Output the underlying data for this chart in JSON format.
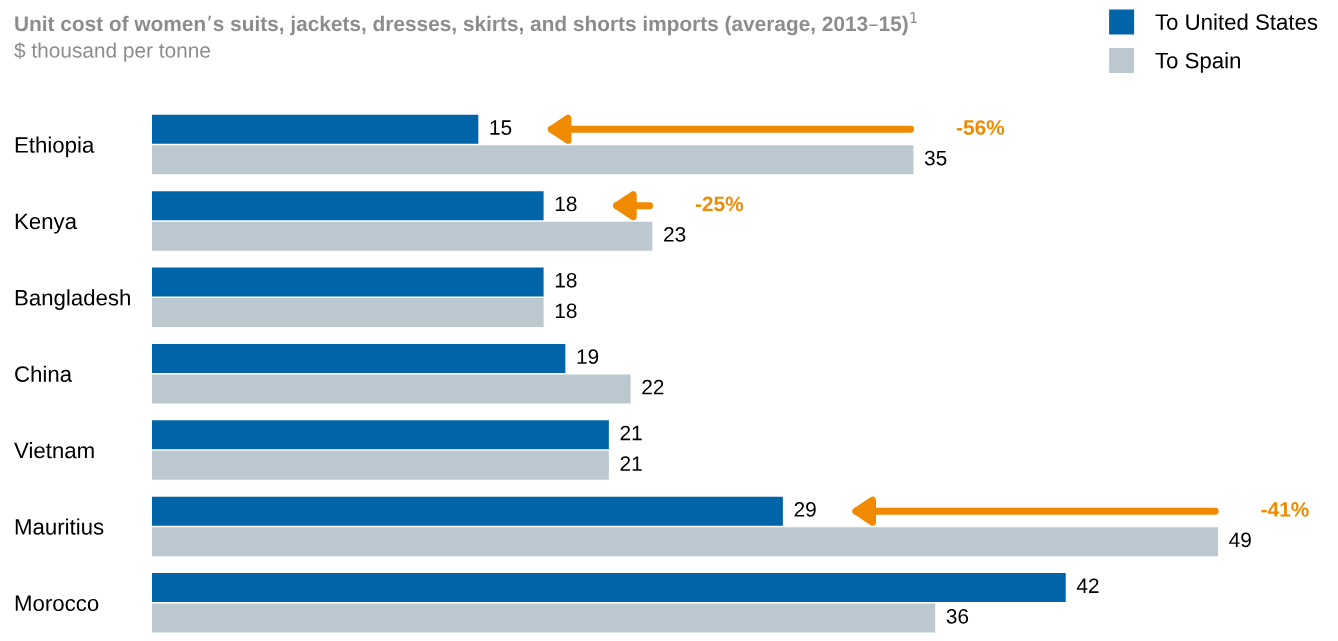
{
  "chart_data": {
    "type": "bar",
    "orientation": "horizontal",
    "title": "Unit cost of women’s suits, jackets, dresses, skirts, and shorts imports (average, 2013–15)$^{1}$",
    "subtitle": "$ thousand per tonne",
    "categories": [
      "Ethiopia",
      "Kenya",
      "Bangladesh",
      "China",
      "Vietnam",
      "Mauritius",
      "Morocco"
    ],
    "series": [
      {
        "name": "To United States",
        "color": "#0064a8",
        "values": [
          15,
          18,
          18,
          19,
          21,
          29,
          42
        ]
      },
      {
        "name": "To Spain",
        "color": "#bcc8d0",
        "values": [
          35,
          23,
          18,
          22,
          21,
          49,
          36
        ]
      }
    ],
    "annotations": [
      {
        "text": "-56%",
        "x": 35,
        "y": "Ethiopia"
      },
      {
        "text": "-25%",
        "x": 23,
        "y": "Kenya"
      },
      {
        "text": "-41%",
        "x": 49,
        "y": "Mauritius"
      }
    ],
    "data_labels": true,
    "legend": "top right",
    "tick_labels": "y",
    "grid": false
  }
}
